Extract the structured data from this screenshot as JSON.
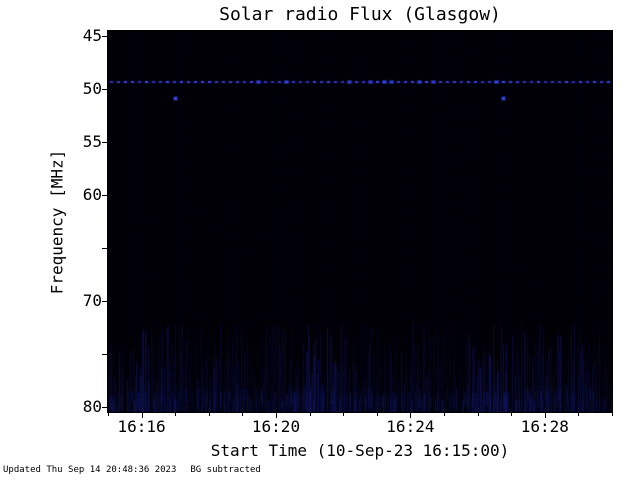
{
  "page": {
    "background_color": "#ffffff",
    "text_color": "#000000"
  },
  "footer": {
    "updated": "Updated Thu Sep 14 20:48:36 2023",
    "bg_note": "BG subtracted"
  },
  "chart_data": {
    "type": "heatmap",
    "title": "Solar radio Flux (Glasgow)",
    "xlabel": "Start Time (10-Sep-23 16:15:00)",
    "ylabel": "Frequency [MHz]",
    "station": "Glasgow",
    "date": "10-Sep-23",
    "start_time": "16:15:00",
    "x_range_min": [
      0,
      15
    ],
    "x_minor_step_min": 1,
    "x_ticks": [
      {
        "label": "16:16",
        "t": 1
      },
      {
        "label": "16:20",
        "t": 5
      },
      {
        "label": "16:24",
        "t": 9
      },
      {
        "label": "16:28",
        "t": 13
      }
    ],
    "y_range_mhz": [
      44.5,
      80.5
    ],
    "y_axis_inverted_note": "45 MHz at top, 80 MHz at bottom",
    "y_ticks": [
      45,
      50,
      55,
      60,
      65,
      70,
      75,
      80
    ],
    "y_tick_labels": [
      45,
      50,
      55,
      60,
      70,
      80
    ],
    "background_color": "#000006",
    "axis_color": "#000000",
    "legend": "none",
    "grid": false,
    "features": [
      {
        "kind": "speckle",
        "color": "#1e2896",
        "desc": "very faint blue background speckle over whole spectrogram"
      },
      {
        "kind": "noise_band",
        "freq_mhz": [
          72.0,
          80.5
        ],
        "color": "#19239b",
        "desc": "faint blue vertical striping noise in low-frequency band"
      },
      {
        "kind": "rfi_dotted_line",
        "freq_mhz": 49.3,
        "dot_spacing_px": 7,
        "color": "#3c48ff",
        "desc": "bright blue horizontal dotted interference line across full time range"
      },
      {
        "kind": "point",
        "freq_mhz": 50.8,
        "time_min": 2.0,
        "color": "#3648f0",
        "desc": "isolated blue dot near 16:17"
      },
      {
        "kind": "point",
        "freq_mhz": 50.8,
        "time_min": 11.75,
        "color": "#3648f0",
        "desc": "isolated blue dot near 16:26:45"
      }
    ]
  }
}
